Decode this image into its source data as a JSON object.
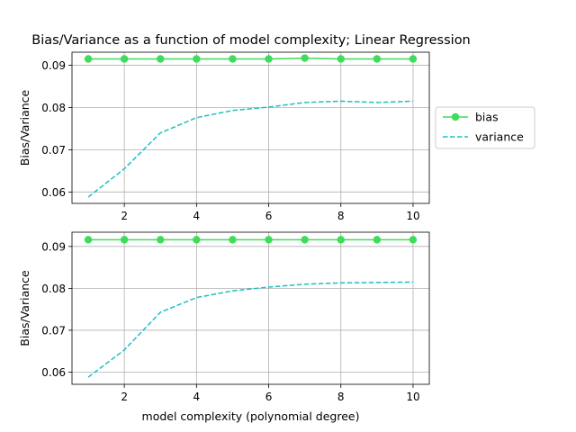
{
  "title": "Bias/Variance as a function of model complexity; Linear Regression",
  "legend": {
    "placement": "outside-right",
    "items": [
      {
        "label": "bias",
        "style": "solid-line-with-circle-markers"
      },
      {
        "label": "variance",
        "style": "dashed-line"
      }
    ]
  },
  "colors": {
    "bias": "#3ddc5a",
    "variance": "#1fbfbf",
    "grid": "#b0b0b0"
  },
  "chart_data": [
    {
      "type": "line",
      "title": "Bias/Variance as a function of model complexity; Linear Regression",
      "xlabel": "",
      "ylabel": "Bias/Variance",
      "x": [
        1,
        2,
        3,
        4,
        5,
        6,
        7,
        8,
        9,
        10
      ],
      "series": [
        {
          "name": "bias",
          "values": [
            0.0915,
            0.0915,
            0.0915,
            0.0915,
            0.0915,
            0.0915,
            0.0917,
            0.0915,
            0.0915,
            0.0915
          ]
        },
        {
          "name": "variance",
          "values": [
            0.0588,
            0.0655,
            0.074,
            0.0776,
            0.0793,
            0.0801,
            0.0812,
            0.0815,
            0.0812,
            0.0815
          ]
        }
      ],
      "xlim": [
        0.55,
        10.45
      ],
      "ylim": [
        0.0573,
        0.0931
      ],
      "xticks": [
        2,
        4,
        6,
        8,
        10
      ],
      "yticks": [
        0.06,
        0.07,
        0.08,
        0.09
      ],
      "ytick_labels": [
        "0.06",
        "0.07",
        "0.08",
        "0.09"
      ],
      "grid": true,
      "legend": "outside-right"
    },
    {
      "type": "line",
      "title": "",
      "xlabel": "model complexity (polynomial degree)",
      "ylabel": "Bias/Variance",
      "x": [
        1,
        2,
        3,
        4,
        5,
        6,
        7,
        8,
        9,
        10
      ],
      "series": [
        {
          "name": "bias",
          "values": [
            0.0916,
            0.0916,
            0.0916,
            0.0916,
            0.0916,
            0.0916,
            0.0916,
            0.0916,
            0.0916,
            0.0916
          ]
        },
        {
          "name": "variance",
          "values": [
            0.0588,
            0.0653,
            0.0743,
            0.0778,
            0.0794,
            0.0803,
            0.081,
            0.0813,
            0.0814,
            0.0815
          ]
        }
      ],
      "xlim": [
        0.55,
        10.45
      ],
      "ylim": [
        0.0571,
        0.0934
      ],
      "xticks": [
        2,
        4,
        6,
        8,
        10
      ],
      "yticks": [
        0.06,
        0.07,
        0.08,
        0.09
      ],
      "ytick_labels": [
        "0.06",
        "0.07",
        "0.08",
        "0.09"
      ],
      "grid": true,
      "legend": "none"
    }
  ]
}
